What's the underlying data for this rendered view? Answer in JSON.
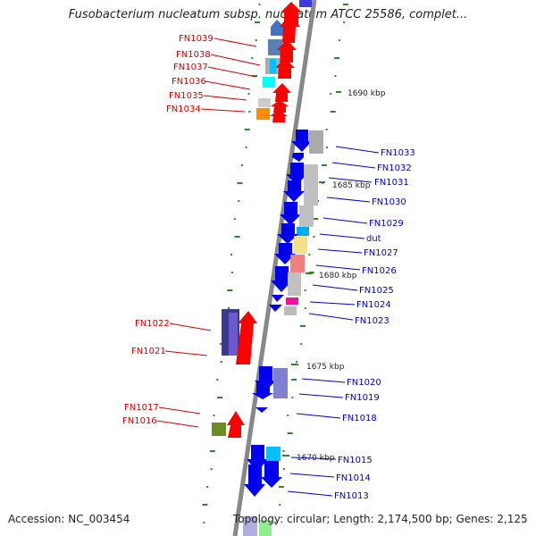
{
  "title": "Fusobacterium nucleatum subsp. nucleatum ATCC 25586, complet...",
  "footer": {
    "accession": "Accession: NC_003454",
    "summary": "Topology: circular; Length: 2,174,500 bp; Genes: 2,125"
  },
  "position_ticks": [
    {
      "label": "1690 kbp"
    },
    {
      "label": "1685 kbp"
    },
    {
      "label": "1680 kbp"
    },
    {
      "label": "1675 kbp"
    },
    {
      "label": "1670 kbp"
    }
  ],
  "genes_left": [
    {
      "label": "FN1039"
    },
    {
      "label": "FN1038"
    },
    {
      "label": "FN1037"
    },
    {
      "label": "FN1036"
    },
    {
      "label": "FN1035"
    },
    {
      "label": "FN1034"
    },
    {
      "label": "FN1022"
    },
    {
      "label": "FN1021"
    },
    {
      "label": "FN1017"
    },
    {
      "label": "FN1016"
    }
  ],
  "genes_right": [
    {
      "label": "FN1033"
    },
    {
      "label": "FN1032"
    },
    {
      "label": "FN1031"
    },
    {
      "label": "FN1030"
    },
    {
      "label": "FN1029"
    },
    {
      "label": "dut"
    },
    {
      "label": "FN1027"
    },
    {
      "label": "FN1026"
    },
    {
      "label": "FN1025"
    },
    {
      "label": "FN1024"
    },
    {
      "label": "FN1023"
    },
    {
      "label": "FN1020"
    },
    {
      "label": "FN1019"
    },
    {
      "label": "FN1018"
    },
    {
      "label": "FN1015"
    },
    {
      "label": "FN1014"
    },
    {
      "label": "FN1013"
    }
  ],
  "colors": {
    "forward_strand": "#ff0000",
    "reverse_strand": "#0000ee",
    "backbone": "#888888",
    "gc_skew_dots": "#2a8a2a",
    "left_label": "#d40000",
    "right_label": "#0000cc"
  }
}
